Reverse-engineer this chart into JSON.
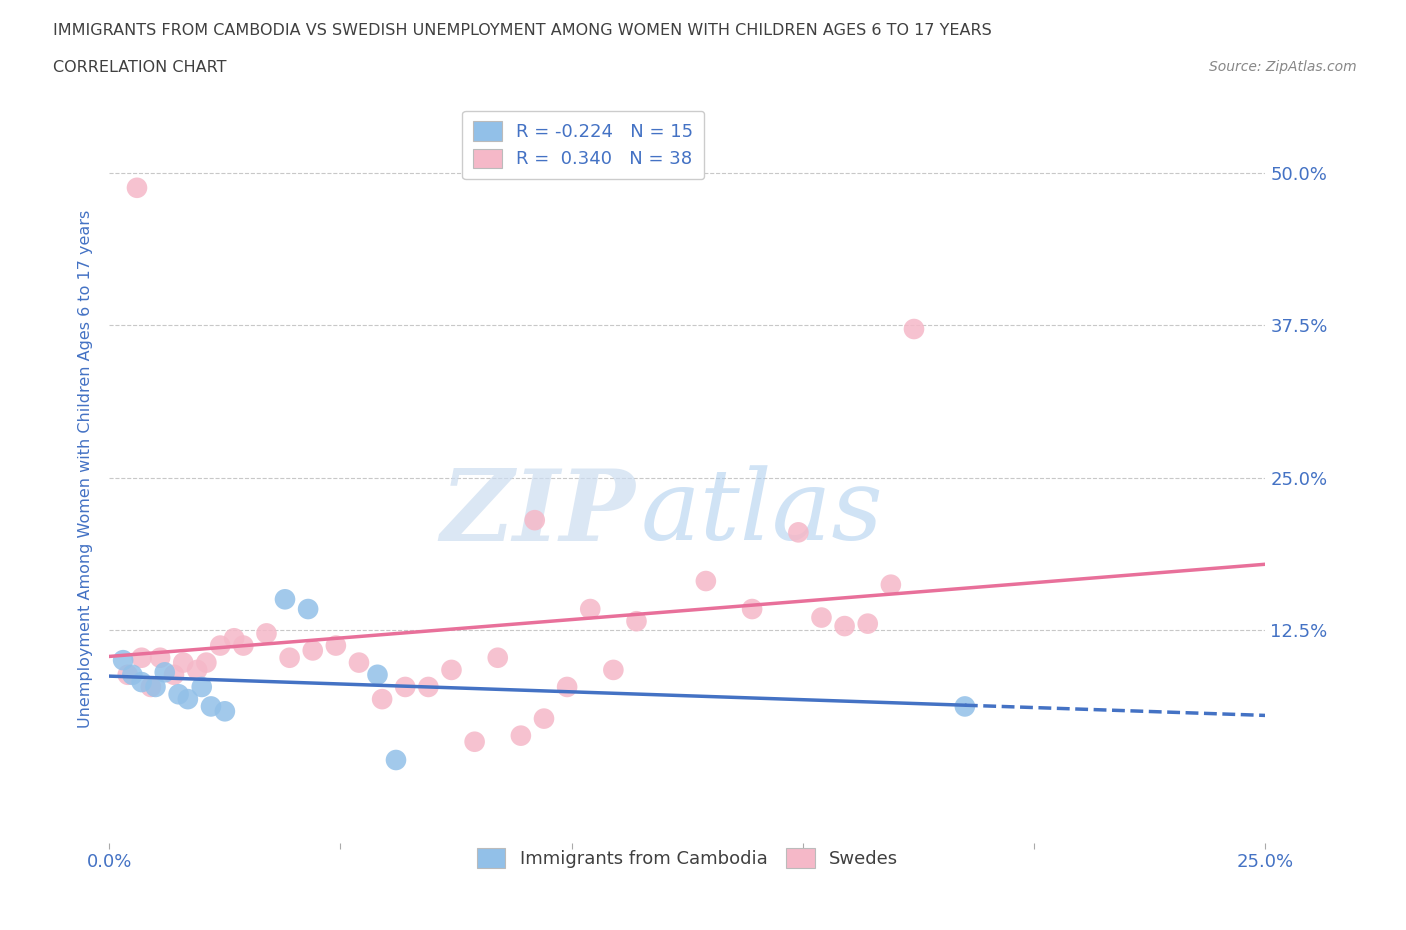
{
  "title": "IMMIGRANTS FROM CAMBODIA VS SWEDISH UNEMPLOYMENT AMONG WOMEN WITH CHILDREN AGES 6 TO 17 YEARS",
  "subtitle": "CORRELATION CHART",
  "source": "Source: ZipAtlas.com",
  "ylabel": "Unemployment Among Women with Children Ages 6 to 17 years",
  "ytick_labels": [
    "50.0%",
    "37.5%",
    "25.0%",
    "12.5%"
  ],
  "ytick_values": [
    0.5,
    0.375,
    0.25,
    0.125
  ],
  "xlim": [
    0.0,
    0.25
  ],
  "ylim": [
    -0.05,
    0.565
  ],
  "legend_r_blue": "-0.224",
  "legend_n_blue": "15",
  "legend_r_pink": "0.340",
  "legend_n_pink": "38",
  "blue_color": "#92c0e8",
  "pink_color": "#f5b8c8",
  "blue_line_color": "#4472c4",
  "pink_line_color": "#e8709a",
  "axis_label_color": "#4472c4",
  "grid_color": "#c8c8c8",
  "cambodia_points": [
    [
      0.003,
      0.1
    ],
    [
      0.005,
      0.088
    ],
    [
      0.007,
      0.082
    ],
    [
      0.01,
      0.078
    ],
    [
      0.012,
      0.09
    ],
    [
      0.015,
      0.072
    ],
    [
      0.017,
      0.068
    ],
    [
      0.02,
      0.078
    ],
    [
      0.022,
      0.062
    ],
    [
      0.025,
      0.058
    ],
    [
      0.038,
      0.15
    ],
    [
      0.043,
      0.142
    ],
    [
      0.058,
      0.088
    ],
    [
      0.062,
      0.018
    ],
    [
      0.185,
      0.062
    ]
  ],
  "swede_points": [
    [
      0.006,
      0.488
    ],
    [
      0.004,
      0.088
    ],
    [
      0.007,
      0.102
    ],
    [
      0.009,
      0.078
    ],
    [
      0.011,
      0.102
    ],
    [
      0.014,
      0.088
    ],
    [
      0.016,
      0.098
    ],
    [
      0.019,
      0.092
    ],
    [
      0.021,
      0.098
    ],
    [
      0.024,
      0.112
    ],
    [
      0.027,
      0.118
    ],
    [
      0.029,
      0.112
    ],
    [
      0.034,
      0.122
    ],
    [
      0.039,
      0.102
    ],
    [
      0.044,
      0.108
    ],
    [
      0.049,
      0.112
    ],
    [
      0.054,
      0.098
    ],
    [
      0.059,
      0.068
    ],
    [
      0.064,
      0.078
    ],
    [
      0.069,
      0.078
    ],
    [
      0.074,
      0.092
    ],
    [
      0.079,
      0.033
    ],
    [
      0.084,
      0.102
    ],
    [
      0.089,
      0.038
    ],
    [
      0.094,
      0.052
    ],
    [
      0.099,
      0.078
    ],
    [
      0.092,
      0.215
    ],
    [
      0.104,
      0.142
    ],
    [
      0.109,
      0.092
    ],
    [
      0.114,
      0.132
    ],
    [
      0.129,
      0.165
    ],
    [
      0.139,
      0.142
    ],
    [
      0.149,
      0.205
    ],
    [
      0.154,
      0.135
    ],
    [
      0.159,
      0.128
    ],
    [
      0.164,
      0.13
    ],
    [
      0.169,
      0.162
    ],
    [
      0.174,
      0.372
    ]
  ]
}
